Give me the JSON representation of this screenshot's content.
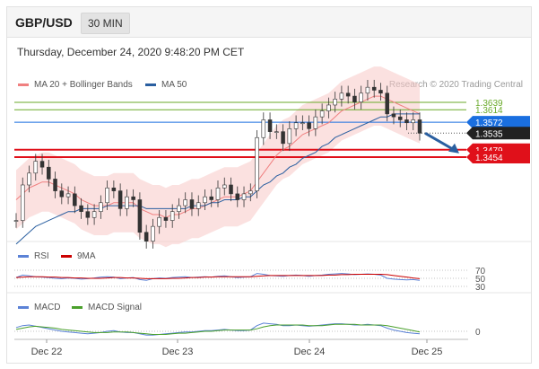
{
  "header": {
    "symbol": "GBP/USD",
    "timeframe": "30 MIN"
  },
  "datetime": "Thursday, December 24, 2020 9:48:20 PM CET",
  "legend": {
    "items": [
      {
        "label": "MA 20 + Bollinger Bands",
        "color": "#f08080"
      },
      {
        "label": "MA 50",
        "color": "#2a5fa0"
      }
    ],
    "credit": "Research © 2020 Trading Central"
  },
  "rsi_legend": [
    {
      "label": "RSI",
      "color": "#5b82d6"
    },
    {
      "label": "9MA",
      "color": "#cc0000"
    }
  ],
  "macd_legend": [
    {
      "label": "MACD",
      "color": "#5b82d6"
    },
    {
      "label": "MACD Signal",
      "color": "#4aa02c"
    }
  ],
  "chart_data": [
    {
      "type": "line",
      "title": "GBP/USD 30 MIN",
      "x_ticks": [
        "Dec 22",
        "Dec 23",
        "Dec 24",
        "Dec 25"
      ],
      "levels": [
        {
          "value": 1.3639,
          "label": "1.3639",
          "color": "#6aaa2a",
          "style": "resistance"
        },
        {
          "value": 1.3614,
          "label": "1.3614",
          "color": "#6aaa2a",
          "style": "resistance"
        },
        {
          "value": 1.3572,
          "label": "1.3572",
          "color": "#1a6fe0",
          "style": "pivot"
        },
        {
          "value": 1.3535,
          "label": "1.3535",
          "color": "#222222",
          "style": "last-price"
        },
        {
          "value": 1.3479,
          "label": "1.3479",
          "color": "#e0101a",
          "style": "support"
        },
        {
          "value": 1.3454,
          "label": "1.3454",
          "color": "#e0101a",
          "style": "support"
        }
      ],
      "y_range": [
        1.3,
        1.38
      ],
      "series": [
        {
          "name": "GBP/USD",
          "values": [
            1.324,
            1.336,
            1.34,
            1.344,
            1.342,
            1.338,
            1.334,
            1.332,
            1.333,
            1.329,
            1.327,
            1.325,
            1.327,
            1.33,
            1.335,
            1.334,
            1.328,
            1.332,
            1.331,
            1.32,
            1.317,
            1.322,
            1.325,
            1.324,
            1.327,
            1.329,
            1.331,
            1.328,
            1.33,
            1.332,
            1.331,
            1.335,
            1.336,
            1.333,
            1.331,
            1.333,
            1.334,
            1.352,
            1.358,
            1.354,
            1.354,
            1.35,
            1.355,
            1.357,
            1.357,
            1.355,
            1.359,
            1.361,
            1.363,
            1.365,
            1.367,
            1.366,
            1.364,
            1.367,
            1.369,
            1.368,
            1.367,
            1.36,
            1.359,
            1.358,
            1.357,
            1.358,
            1.3535
          ]
        },
        {
          "name": "MA 20",
          "values": [
            1.331,
            1.333,
            1.335,
            1.336,
            1.337,
            1.337,
            1.336,
            1.335,
            1.334,
            1.333,
            1.331,
            1.33,
            1.329,
            1.329,
            1.329,
            1.33,
            1.33,
            1.33,
            1.33,
            1.328,
            1.327,
            1.326,
            1.326,
            1.325,
            1.326,
            1.326,
            1.327,
            1.328,
            1.328,
            1.329,
            1.33,
            1.331,
            1.332,
            1.332,
            1.332,
            1.333,
            1.334,
            1.337,
            1.34,
            1.343,
            1.346,
            1.348,
            1.349,
            1.351,
            1.353,
            1.354,
            1.355,
            1.356,
            1.357,
            1.359,
            1.361,
            1.362,
            1.363,
            1.364,
            1.365,
            1.366,
            1.366,
            1.365,
            1.364,
            1.363,
            1.362,
            1.361,
            1.36
          ]
        },
        {
          "name": "MA 50",
          "values": [
            1.316,
            1.318,
            1.32,
            1.322,
            1.323,
            1.324,
            1.325,
            1.326,
            1.327,
            1.327,
            1.328,
            1.328,
            1.328,
            1.328,
            1.329,
            1.329,
            1.329,
            1.329,
            1.329,
            1.329,
            1.328,
            1.328,
            1.328,
            1.328,
            1.328,
            1.328,
            1.328,
            1.329,
            1.329,
            1.329,
            1.33,
            1.33,
            1.331,
            1.331,
            1.331,
            1.332,
            1.332,
            1.334,
            1.336,
            1.337,
            1.339,
            1.34,
            1.342,
            1.343,
            1.345,
            1.346,
            1.347,
            1.349,
            1.35,
            1.352,
            1.353,
            1.354,
            1.355,
            1.356,
            1.357,
            1.358,
            1.359,
            1.359,
            1.36,
            1.36,
            1.36,
            1.36,
            1.36
          ]
        }
      ],
      "forecast_arrow": {
        "from": 1.3535,
        "to": 1.3479
      }
    },
    {
      "type": "line",
      "title": "RSI",
      "levels": [
        70,
        50,
        30
      ],
      "y_range": [
        20,
        80
      ],
      "series": [
        {
          "name": "RSI",
          "values": [
            52,
            58,
            56,
            54,
            53,
            52,
            50,
            49,
            51,
            50,
            48,
            49,
            51,
            53,
            54,
            53,
            49,
            51,
            52,
            47,
            45,
            49,
            51,
            50,
            52,
            53,
            54,
            52,
            53,
            54,
            53,
            55,
            56,
            54,
            52,
            53,
            54,
            62,
            60,
            57,
            56,
            55,
            57,
            58,
            57,
            55,
            57,
            58,
            60,
            61,
            62,
            61,
            59,
            60,
            61,
            60,
            58,
            50,
            48,
            47,
            46,
            47,
            45
          ]
        },
        {
          "name": "9MA",
          "values": [
            52,
            53,
            54,
            54,
            54,
            53,
            53,
            52,
            52,
            51,
            51,
            50,
            50,
            50,
            51,
            52,
            52,
            51,
            51,
            50,
            49,
            49,
            49,
            49,
            50,
            50,
            51,
            52,
            52,
            53,
            53,
            54,
            54,
            54,
            54,
            54,
            54,
            55,
            56,
            57,
            57,
            57,
            57,
            57,
            57,
            57,
            57,
            57,
            58,
            58,
            59,
            59,
            60,
            60,
            60,
            60,
            60,
            59,
            57,
            55,
            53,
            51,
            49
          ]
        }
      ]
    },
    {
      "type": "line",
      "title": "MACD",
      "levels": [
        0
      ],
      "series": [
        {
          "name": "MACD",
          "values": [
            0.6,
            0.9,
            1.0,
            0.8,
            0.6,
            0.4,
            0.2,
            0.0,
            -0.1,
            -0.2,
            -0.3,
            -0.4,
            -0.3,
            -0.2,
            0.0,
            0.1,
            -0.1,
            -0.2,
            -0.2,
            -0.4,
            -0.6,
            -0.6,
            -0.5,
            -0.4,
            -0.3,
            -0.2,
            -0.1,
            -0.1,
            0.0,
            0.1,
            0.1,
            0.2,
            0.3,
            0.2,
            0.1,
            0.1,
            0.2,
            0.9,
            1.3,
            1.2,
            1.1,
            0.9,
            0.9,
            1.0,
            0.9,
            0.8,
            0.9,
            1.0,
            1.1,
            1.2,
            1.2,
            1.1,
            1.0,
            1.0,
            1.1,
            1.0,
            0.9,
            0.5,
            0.2,
            0.0,
            -0.2,
            -0.3,
            -0.4
          ]
        },
        {
          "name": "MACD Signal",
          "values": [
            0.3,
            0.5,
            0.7,
            0.8,
            0.7,
            0.6,
            0.5,
            0.3,
            0.2,
            0.1,
            0.0,
            -0.1,
            -0.2,
            -0.2,
            -0.2,
            -0.1,
            -0.1,
            -0.1,
            -0.2,
            -0.3,
            -0.4,
            -0.5,
            -0.5,
            -0.5,
            -0.4,
            -0.3,
            -0.3,
            -0.2,
            -0.1,
            0.0,
            0.0,
            0.1,
            0.2,
            0.2,
            0.2,
            0.2,
            0.2,
            0.4,
            0.7,
            0.9,
            1.0,
            1.0,
            1.0,
            1.0,
            1.0,
            0.9,
            0.9,
            0.9,
            1.0,
            1.1,
            1.1,
            1.1,
            1.1,
            1.0,
            1.0,
            1.0,
            1.0,
            0.9,
            0.7,
            0.5,
            0.3,
            0.1,
            -0.1
          ]
        }
      ]
    }
  ]
}
